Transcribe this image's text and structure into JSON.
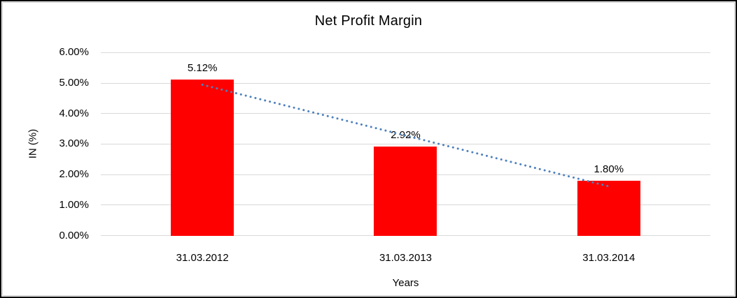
{
  "frame": {
    "background_color": "#ffffff",
    "outer_border_color": "#000000",
    "inner_border_color": "#c9c9c9"
  },
  "chart_data": {
    "type": "bar",
    "title": "Net Profit Margin",
    "xlabel": "Years",
    "ylabel": "IN (%)",
    "categories": [
      "31.03.2012",
      "31.03.2013",
      "31.03.2014"
    ],
    "values": [
      5.12,
      2.92,
      1.8
    ],
    "value_labels": [
      "5.12%",
      "2.92%",
      "1.80%"
    ],
    "ylim": [
      0,
      6
    ],
    "y_ticks": [
      6,
      5,
      4,
      3,
      2,
      1,
      0
    ],
    "y_tick_labels": [
      "6.00%",
      "5.00%",
      "4.00%",
      "3.00%",
      "2.00%",
      "1.00%",
      "0.00%"
    ],
    "grid": true,
    "legend": false,
    "bar_color": "#ff0000",
    "gridline_color": "#d9d9d9",
    "trendline": {
      "style": "dotted",
      "color": "#4e81bd",
      "start_value": 4.94,
      "end_value": 1.62
    }
  }
}
